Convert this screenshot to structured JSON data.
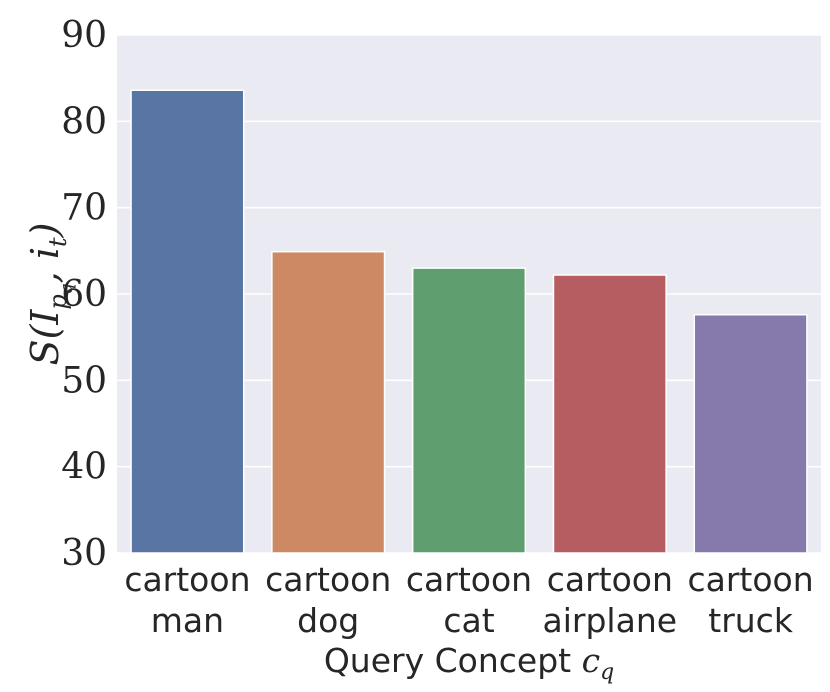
{
  "chart_data": {
    "type": "bar",
    "categories": [
      [
        "cartoon",
        "man"
      ],
      [
        "cartoon",
        "dog"
      ],
      [
        "cartoon",
        "cat"
      ],
      [
        "cartoon",
        "airplane"
      ],
      [
        "cartoon",
        "truck"
      ]
    ],
    "values": [
      83.6,
      64.9,
      63.0,
      62.2,
      57.6
    ],
    "colors": [
      "#5875a4",
      "#cc8963",
      "#5f9e6e",
      "#b55d60",
      "#857aab"
    ],
    "ylim": [
      30,
      90
    ],
    "yticks": [
      "30",
      "40",
      "50",
      "60",
      "70",
      "80",
      "90"
    ],
    "xlabel": {
      "text": "Query Concept ",
      "symbol": "c",
      "sub": "q"
    },
    "ylabel": {
      "text": "S(I",
      "sub1": "p",
      "sub2": "q",
      "rest": ", i",
      "sub3": "t",
      "close": ")"
    },
    "grid": true,
    "background": "#eaeaf2"
  }
}
